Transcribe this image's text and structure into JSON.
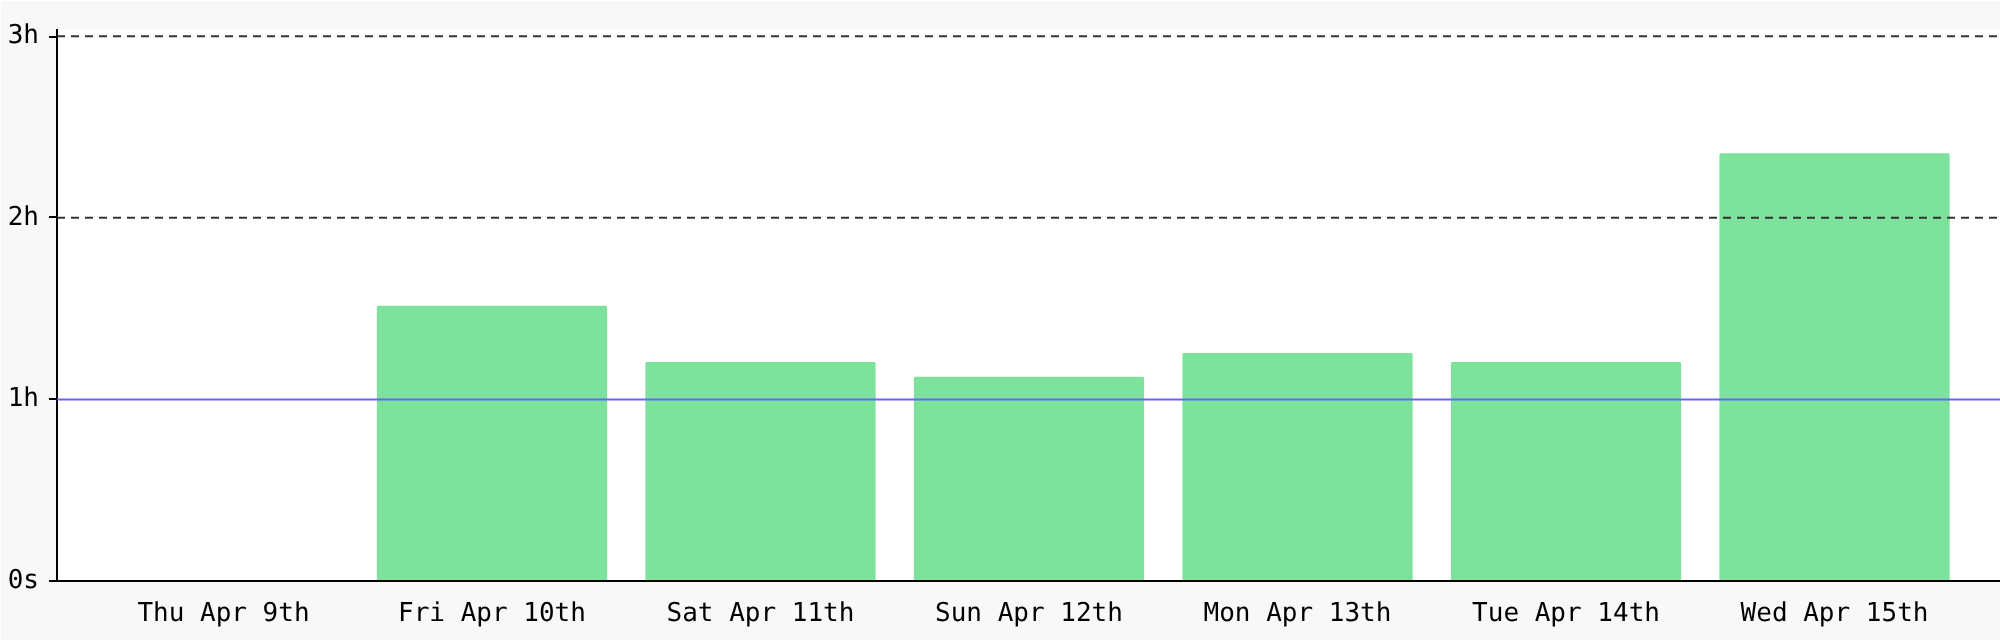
{
  "chart_data": {
    "type": "bar",
    "categories": [
      "Thu Apr 9th",
      "Fri Apr 10th",
      "Sat Apr 11th",
      "Sun Apr 12th",
      "Mon Apr 13th",
      "Tue Apr 14th",
      "Wed Apr 15th"
    ],
    "values": [
      0,
      1.51,
      1.2,
      1.12,
      1.25,
      1.2,
      2.35
    ],
    "color": "#7de29b",
    "ylim": [
      0,
      3.04
    ],
    "yticks": [
      {
        "value": 0,
        "label": "0s"
      },
      {
        "value": 1,
        "label": "1h"
      },
      {
        "value": 2,
        "label": "2h"
      },
      {
        "value": 3,
        "label": "3h"
      }
    ],
    "ref_lines": [
      {
        "axis": "y",
        "value": 1,
        "color": "#6666ff",
        "line_style": "solid"
      },
      {
        "axis": "y",
        "value": 2,
        "color": "#333333",
        "line_style": "dashed"
      },
      {
        "axis": "y",
        "value": 3,
        "color": "#333333",
        "line_style": "dashed"
      }
    ]
  }
}
